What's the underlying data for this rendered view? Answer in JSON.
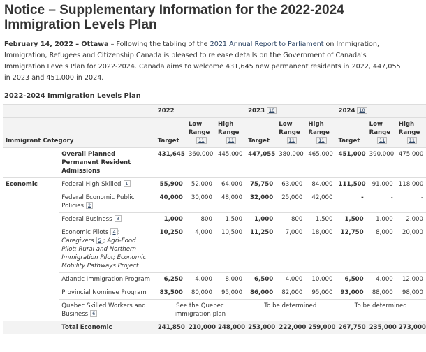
{
  "title": "Notice – Supplementary Information for the 2022-2024 Immigration Levels Plan",
  "intro": {
    "dateline": "February 14, 2022 – Ottawa",
    "before_link": " – Following the tabling of the ",
    "link": "2021 Annual Report to Parliament",
    "after_link": " on Immigration, Immigration, Refugees and Citizenship Canada is pleased to release details on the Government of Canada's Immigration Levels Plan for 2022-2024. Canada aims to welcome 431,645 new permanent residents in 2022, 447,055 in 2023 and 451,000 in 2024."
  },
  "table": {
    "caption": "2022-2024 Immigration Levels Plan",
    "category_header": "Immigrant Category",
    "years": [
      {
        "year": "2022"
      },
      {
        "year": "2023",
        "note": "10"
      },
      {
        "year": "2024",
        "note": "10"
      }
    ],
    "column_labels": {
      "target": "Target",
      "low": "Low Range",
      "high": "High Range",
      "range_note": "11"
    },
    "overall": {
      "label": "Overall Planned Permanent Resident Admissions",
      "cells": [
        "431,645",
        "360,000",
        "445,000",
        "447,055",
        "380,000",
        "465,000",
        "451,000",
        "390,000",
        "475,000"
      ]
    },
    "sections": [
      {
        "name": "Economic",
        "rows": [
          {
            "label": [
              {
                "text": "Federal High Skilled"
              },
              {
                "note": "1"
              }
            ],
            "cells": [
              "55,900",
              "52,000",
              "64,000",
              "75,750",
              "63,000",
              "84,000",
              "111,500",
              "91,000",
              "118,000"
            ]
          },
          {
            "label": [
              {
                "text": "Federal Economic Public Policies"
              },
              {
                "note": "2"
              }
            ],
            "cells": [
              "40,000",
              "30,000",
              "48,000",
              "32,000",
              "25,000",
              "42,000",
              "-",
              "-",
              "-"
            ]
          },
          {
            "label": [
              {
                "text": "Federal Business"
              },
              {
                "note": "3"
              }
            ],
            "cells": [
              "1,000",
              "800",
              "1,500",
              "1,000",
              "800",
              "1,500",
              "1,500",
              "1,000",
              "2,000"
            ]
          },
          {
            "label": [
              {
                "text": "Economic Pilots"
              },
              {
                "note": "4"
              },
              {
                "text": ":"
              },
              {
                "text": "Caregivers",
                "italic": true
              },
              {
                "note": "5"
              },
              {
                "text": "; "
              },
              {
                "text": "Agri-Food Pilot; Rural and Northern Immigration Pilot; Economic Mobility Pathways Project",
                "italic": true
              }
            ],
            "cells": [
              "10,250",
              "4,000",
              "10,500",
              "11,250",
              "7,000",
              "18,000",
              "12,750",
              "8,000",
              "20,000"
            ]
          },
          {
            "label": [
              {
                "text": "Atlantic Immigration Program"
              }
            ],
            "cells": [
              "6,250",
              "4,000",
              "8,000",
              "6,500",
              "4,000",
              "10,000",
              "6,500",
              "4,000",
              "12,000"
            ]
          },
          {
            "label": [
              {
                "text": "Provincial Nominee Program"
              }
            ],
            "cells": [
              "83,500",
              "80,000",
              "95,000",
              "86,000",
              "82,000",
              "95,000",
              "93,000",
              "88,000",
              "98,000"
            ]
          },
          {
            "label": [
              {
                "text": "Quebec Skilled Workers and Business"
              },
              {
                "note": "6"
              }
            ],
            "cells": [
              "See the Quebec immigration plan",
              "To be determined",
              "To be determined"
            ]
          }
        ],
        "total": {
          "label": "Total Economic",
          "cells": [
            "241,850",
            "210,000",
            "248,000",
            "253,000",
            "222,000",
            "259,000",
            "267,750",
            "235,000",
            "273,000"
          ]
        }
      }
    ]
  }
}
